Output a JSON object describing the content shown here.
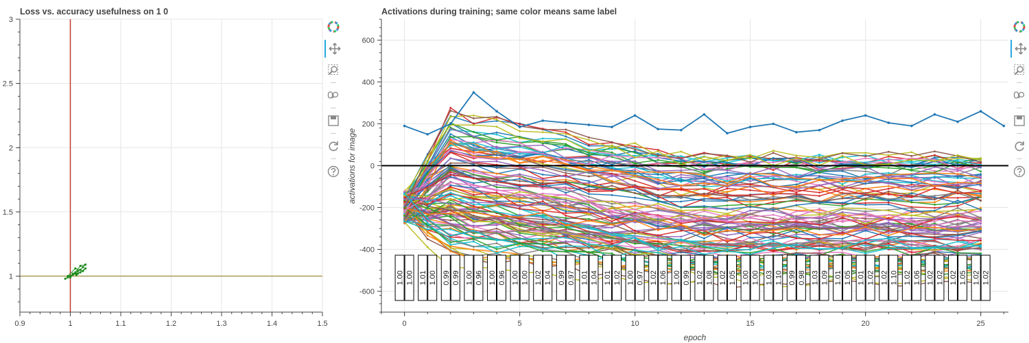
{
  "left_plot": {
    "title": "Loss vs. accuracy usefulness on 1 0"
  },
  "right_plot": {
    "title": "Activations during training; same color means same label"
  },
  "toolbar": {
    "tools": [
      "bokeh-logo-icon",
      "pan-icon",
      "box-zoom-icon",
      "wheel-zoom-icon",
      "save-icon",
      "reset-icon",
      "help-icon"
    ]
  },
  "chart_data": [
    {
      "type": "scatter",
      "title": "Loss vs. accuracy usefulness on 1 0",
      "xlabel": "",
      "ylabel": "",
      "xlim": [
        0.9,
        1.5
      ],
      "ylim": [
        0.72,
        3.0
      ],
      "xticks": [
        "0.9",
        "1",
        "1.1",
        "1.2",
        "1.3",
        "1.4",
        "1.5"
      ],
      "yticks": [
        "1",
        "1.5",
        "2",
        "2.5",
        "3"
      ],
      "vline": {
        "x": 1.0,
        "color": "#c0392b"
      },
      "hline": {
        "y": 1.0,
        "color": "#a89a55"
      },
      "cluster_color": "#1a8a1a",
      "points": [
        [
          0.99,
          0.98
        ],
        [
          0.995,
          0.99
        ],
        [
          1.0,
          1.0
        ],
        [
          1.005,
          1.01
        ],
        [
          1.01,
          1.02
        ],
        [
          1.015,
          1.04
        ],
        [
          1.02,
          1.05
        ],
        [
          1.025,
          1.07
        ],
        [
          1.03,
          1.09
        ],
        [
          1.02,
          1.08
        ],
        [
          1.01,
          1.03
        ],
        [
          1.0,
          0.99
        ],
        [
          1.005,
          1.02
        ],
        [
          1.015,
          1.02
        ],
        [
          1.02,
          1.03
        ],
        [
          0.995,
          1.0
        ],
        [
          1.01,
          1.06
        ],
        [
          1.025,
          1.04
        ],
        [
          1.03,
          1.06
        ],
        [
          1.012,
          1.01
        ]
      ]
    },
    {
      "type": "line",
      "title": "Activations during training; same color means same label",
      "xlabel": "epoch",
      "ylabel": "activations for image",
      "xlim": [
        -1,
        26.2
      ],
      "ylim": [
        -700,
        700
      ],
      "xticks": [
        "0",
        "5",
        "10",
        "15",
        "20",
        "25"
      ],
      "yticks": [
        "-600",
        "-400",
        "-200",
        "0",
        "200",
        "400",
        "600"
      ],
      "zero_line": true,
      "series_count": 110,
      "palette": [
        "#1f77b4",
        "#ff7f0e",
        "#2ca02c",
        "#d62728",
        "#9467bd",
        "#8c564b",
        "#e377c2",
        "#7f7f7f",
        "#bcbd22",
        "#17becf"
      ],
      "top_series": [
        190,
        150,
        200,
        350,
        260,
        185,
        215,
        205,
        195,
        185,
        240,
        175,
        170,
        245,
        155,
        185,
        200,
        160,
        170,
        215,
        240,
        205,
        190,
        245,
        210,
        260,
        190
      ],
      "ratio_labels": [
        [
          "1.00",
          "1.00"
        ],
        [
          "1.01",
          "1.00"
        ],
        [
          "0.99",
          "0.99"
        ],
        [
          "1.00",
          "0.96"
        ],
        [
          "1.00",
          "0.96"
        ],
        [
          "1.00",
          "1.00"
        ],
        [
          "1.02",
          "1.04"
        ],
        [
          "0.99",
          "0.97"
        ],
        [
          "1.01",
          "1.04"
        ],
        [
          "1.01",
          "1.02"
        ],
        [
          "1.00",
          "0.97"
        ],
        [
          "1.02",
          "1.06"
        ],
        [
          "1.00",
          "0.99"
        ],
        [
          "1.02",
          "1.08"
        ],
        [
          "1.02",
          "1.05"
        ],
        [
          "1.00",
          "1.00"
        ],
        [
          "1.03",
          "1.10"
        ],
        [
          "0.99",
          "0.98"
        ],
        [
          "1.03",
          "1.09"
        ],
        [
          "1.01",
          "1.05"
        ],
        [
          "1.01",
          "1.02"
        ],
        [
          "1.02",
          "1.10"
        ],
        [
          "1.02",
          "1.06"
        ],
        [
          "1.02",
          "1.02"
        ],
        [
          "1.02",
          "1.05"
        ],
        [
          "1.02",
          "1.02"
        ]
      ]
    }
  ]
}
